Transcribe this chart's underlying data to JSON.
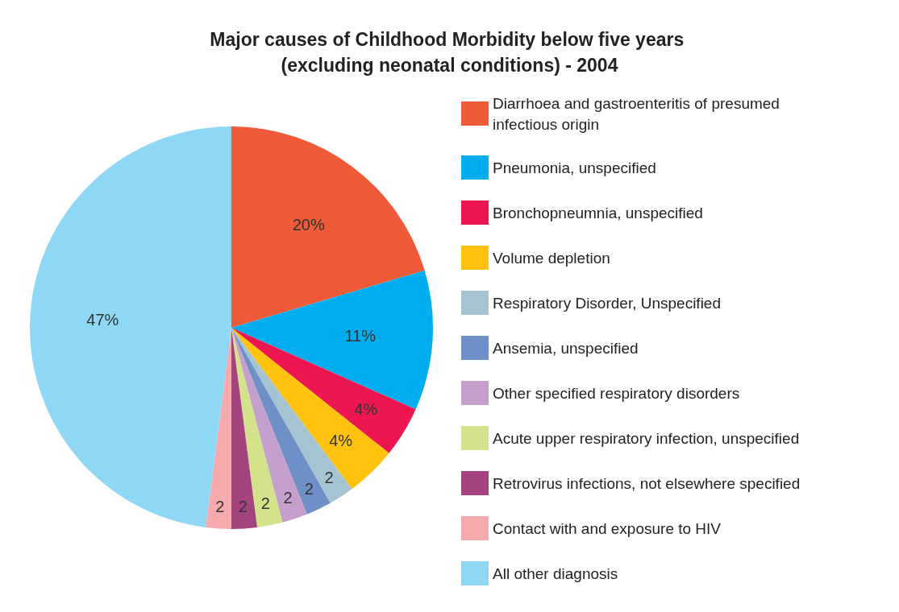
{
  "chart_data": {
    "type": "pie",
    "title": "Major causes of Childhood Morbidity below five years (excluding neonatal conditions) - 2004",
    "categories": [
      "Diarrhoea and gastroenteritis of presumed infectious origin",
      "Pneumonia, unspecified",
      "Bronchopneumnia, unspecified",
      "Volume depletion",
      "Respiratory Disorder, Unspecified",
      "Ansemia, unspecified",
      "Other specified respiratory disorders",
      "Acute upper respiratory infection, unspecified",
      "Retrovirus infections, not elsewhere specified",
      "Contact with and exposure to HIV",
      "All other diagnosis"
    ],
    "values": [
      20,
      11,
      4,
      4,
      2,
      2,
      2,
      2,
      2,
      2,
      47
    ],
    "value_labels": [
      "20%",
      "11%",
      "4%",
      "4%",
      "2",
      "2",
      "2",
      "2",
      "2",
      "2",
      "47%"
    ],
    "colors": [
      "#ef5a39",
      "#00aeef",
      "#ed1651",
      "#ffc20e",
      "#a5c3d1",
      "#6f8fc9",
      "#c6a0cc",
      "#d3e28b",
      "#a4447f",
      "#f6aaad",
      "#8fd8f5"
    ],
    "legend": "right"
  }
}
